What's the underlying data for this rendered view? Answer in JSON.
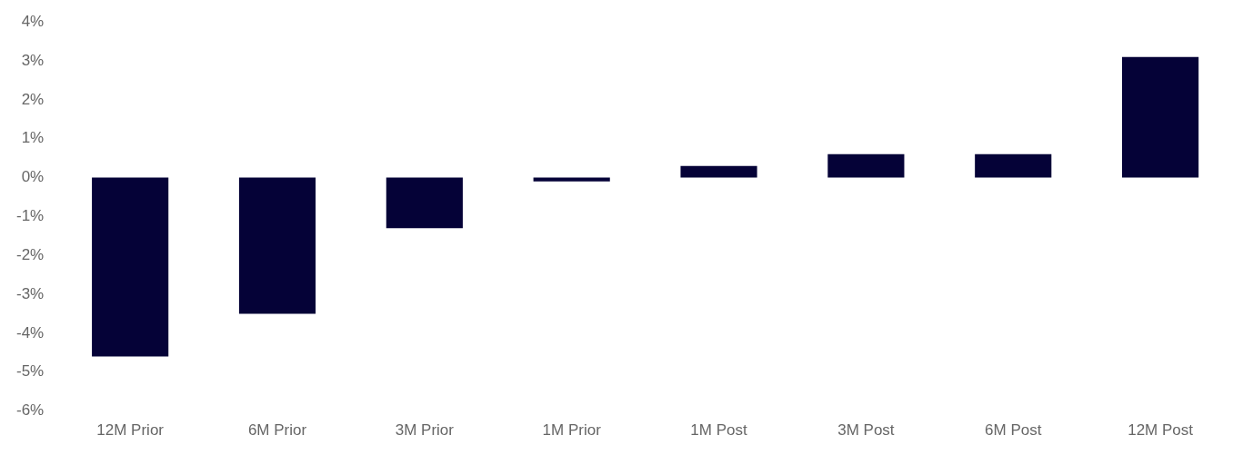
{
  "chart_data": {
    "type": "bar",
    "categories": [
      "12M Prior",
      "6M Prior",
      "3M Prior",
      "1M Prior",
      "1M Post",
      "3M Post",
      "6M Post",
      "12M Post"
    ],
    "values": [
      -4.6,
      -3.5,
      -1.3,
      -0.1,
      0.3,
      0.6,
      0.6,
      3.1
    ],
    "color": "#050237",
    "ylim": [
      -6,
      4
    ],
    "yticks": [
      {
        "value": -6,
        "label": "-6%"
      },
      {
        "value": -5,
        "label": "-5%"
      },
      {
        "value": -4,
        "label": "-4%"
      },
      {
        "value": -3,
        "label": "-3%"
      },
      {
        "value": -2,
        "label": "-2%"
      },
      {
        "value": -1,
        "label": "-1%"
      },
      {
        "value": 0,
        "label": "0%"
      },
      {
        "value": 1,
        "label": "1%"
      },
      {
        "value": 2,
        "label": "2%"
      },
      {
        "value": 3,
        "label": "3%"
      },
      {
        "value": 4,
        "label": "4%"
      }
    ],
    "grid": false,
    "legend": false
  }
}
